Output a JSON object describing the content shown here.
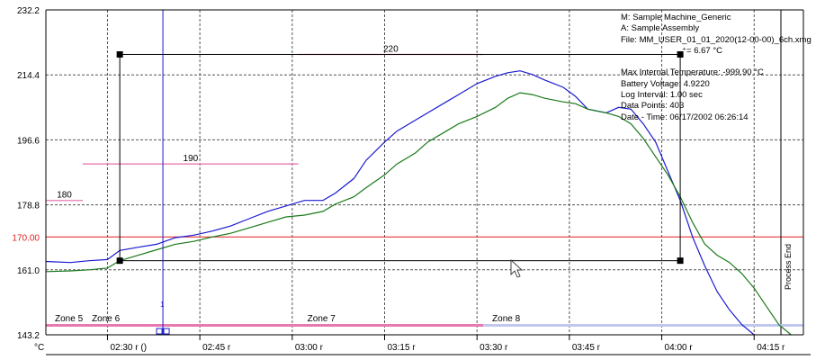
{
  "chart_data": {
    "type": "line",
    "ylim": [
      143.2,
      232.2
    ],
    "y_ticks": [
      "232.2",
      "214.4",
      "196.6",
      "178.8",
      "161.0",
      "143.2"
    ],
    "y_unit": "°C",
    "x_ticks": [
      "02:30 r ()",
      "02:45 r",
      "03:00 r",
      "03:15 r",
      "03:30 r",
      "03:45 r",
      "04:00 r",
      "04:15 r"
    ],
    "x_start": "02:20",
    "x_end": "04:23",
    "reference_line": {
      "value": 170.0,
      "label": "170.00",
      "color": "#e02020"
    },
    "series": [
      {
        "color": "#1a1ad0",
        "points": [
          [
            "02:20",
            163.3
          ],
          [
            "02:24",
            163.0
          ],
          [
            "02:27",
            163.5
          ],
          [
            "02:30",
            163.8
          ],
          [
            "02:32",
            166.3
          ],
          [
            "02:35",
            167.2
          ],
          [
            "02:38",
            168.0
          ],
          [
            "02:41",
            169.8
          ],
          [
            "02:44",
            170.5
          ],
          [
            "02:47",
            171.6
          ],
          [
            "02:50",
            173.0
          ],
          [
            "02:53",
            175.0
          ],
          [
            "02:56",
            177.0
          ],
          [
            "02:59",
            178.5
          ],
          [
            "03:02",
            180.0
          ],
          [
            "03:05",
            180.0
          ],
          [
            "03:07",
            182.0
          ],
          [
            "03:10",
            186.0
          ],
          [
            "03:12",
            191.0
          ],
          [
            "03:15",
            196.0
          ],
          [
            "03:17",
            199.0
          ],
          [
            "03:20",
            202.0
          ],
          [
            "03:22",
            204.0
          ],
          [
            "03:25",
            207.0
          ],
          [
            "03:27",
            209.0
          ],
          [
            "03:30",
            212.0
          ],
          [
            "03:33",
            214.0
          ],
          [
            "03:35",
            215.0
          ],
          [
            "03:37",
            215.5
          ],
          [
            "03:39",
            214.5
          ],
          [
            "03:41",
            213.0
          ],
          [
            "03:44",
            211.0
          ],
          [
            "03:46",
            208.5
          ],
          [
            "03:48",
            205.0
          ],
          [
            "03:51",
            204.0
          ],
          [
            "03:53",
            205.5
          ],
          [
            "03:55",
            205.0
          ],
          [
            "03:57",
            201.0
          ],
          [
            "03:59",
            196.0
          ],
          [
            "04:01",
            188.0
          ],
          [
            "04:03",
            180.0
          ],
          [
            "04:05",
            170.0
          ],
          [
            "04:07",
            162.0
          ],
          [
            "04:09",
            155.0
          ],
          [
            "04:11",
            150.0
          ],
          [
            "04:13",
            146.0
          ],
          [
            "04:15",
            143.2
          ]
        ]
      },
      {
        "color": "#1a7a1a",
        "points": [
          [
            "02:20",
            160.5
          ],
          [
            "02:24",
            160.7
          ],
          [
            "02:27",
            161.0
          ],
          [
            "02:30",
            161.5
          ],
          [
            "02:32",
            163.5
          ],
          [
            "02:35",
            165.0
          ],
          [
            "02:38",
            166.5
          ],
          [
            "02:41",
            168.0
          ],
          [
            "02:44",
            168.8
          ],
          [
            "02:47",
            170.0
          ],
          [
            "02:50",
            171.0
          ],
          [
            "02:53",
            172.5
          ],
          [
            "02:56",
            174.0
          ],
          [
            "02:59",
            175.5
          ],
          [
            "03:02",
            176.0
          ],
          [
            "03:05",
            177.0
          ],
          [
            "03:07",
            179.0
          ],
          [
            "03:10",
            181.0
          ],
          [
            "03:12",
            183.5
          ],
          [
            "03:15",
            187.0
          ],
          [
            "03:17",
            190.0
          ],
          [
            "03:20",
            193.0
          ],
          [
            "03:22",
            196.0
          ],
          [
            "03:25",
            199.0
          ],
          [
            "03:27",
            201.0
          ],
          [
            "03:30",
            203.0
          ],
          [
            "03:33",
            205.5
          ],
          [
            "03:35",
            208.0
          ],
          [
            "03:37",
            209.5
          ],
          [
            "03:39",
            209.0
          ],
          [
            "03:41",
            208.0
          ],
          [
            "03:44",
            207.0
          ],
          [
            "03:46",
            206.5
          ],
          [
            "03:48",
            205.0
          ],
          [
            "03:51",
            204.0
          ],
          [
            "03:53",
            203.0
          ],
          [
            "03:55",
            201.0
          ],
          [
            "03:57",
            197.0
          ],
          [
            "03:59",
            192.0
          ],
          [
            "04:01",
            187.0
          ],
          [
            "04:03",
            181.0
          ],
          [
            "04:05",
            174.0
          ],
          [
            "04:07",
            168.0
          ],
          [
            "04:09",
            165.0
          ],
          [
            "04:11",
            163.0
          ],
          [
            "04:13",
            160.0
          ],
          [
            "04:15",
            156.0
          ],
          [
            "04:17",
            151.0
          ],
          [
            "04:19",
            146.0
          ],
          [
            "04:21",
            143.2
          ]
        ]
      }
    ],
    "zones": [
      {
        "label": "Zone 5",
        "start": "02:20",
        "end": "02:26",
        "level": 180,
        "level_label": "180",
        "color": "#e878b0"
      },
      {
        "label": "Zone 6",
        "start": "02:26",
        "end": "03:01",
        "level": 190,
        "level_label": "190",
        "color": "#e878b0"
      },
      {
        "label": "Zone 7",
        "start": "03:01",
        "end": "03:31",
        "level": 220,
        "level_label": "220",
        "color": "#e878b0"
      },
      {
        "label": "Zone 8",
        "start": "03:31",
        "end": "04:23",
        "color": "#c0c8f0"
      }
    ],
    "marker_line": {
      "time": "02:39",
      "label": "1",
      "color": "#1a1ad0"
    },
    "measurement_box": {
      "t1": "02:32",
      "t2": "04:03",
      "y_low": 163.5,
      "y_high": 220.0
    },
    "process_end_label": "Process End",
    "process_end_time": "04:23"
  },
  "info": {
    "machine": "M: Sample Machine_Generic",
    "assembly": "A: Sample Assembly",
    "file": "File: MM_USER_01_01_2020(12-00-00)_6ch.xmg",
    "delta": "⁺=   6.67 °C",
    "max_temp": "Max Internal Temperature: -999.90 °C",
    "battery": "Battery Voltage: 4.9220",
    "log_interval": "Log Interval: 1.00 sec",
    "data_points": "Data Points: 403",
    "date_time": "Date - Time: 06/17/2002 06:26:14"
  }
}
